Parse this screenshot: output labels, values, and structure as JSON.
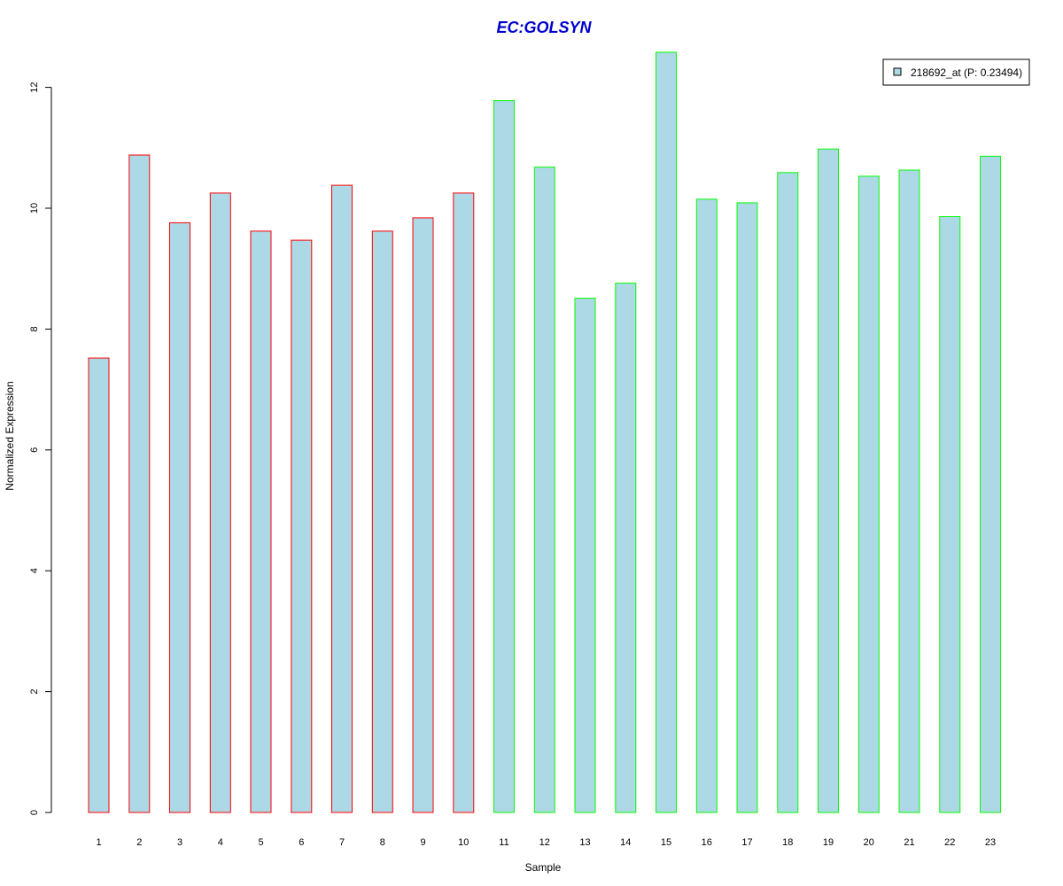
{
  "chart_data": {
    "type": "bar",
    "title": "EC:GOLSYN",
    "xlabel": "Sample",
    "ylabel": "Normalized Expression",
    "categories": [
      "1",
      "2",
      "3",
      "4",
      "5",
      "6",
      "7",
      "8",
      "9",
      "10",
      "11",
      "12",
      "13",
      "14",
      "15",
      "16",
      "17",
      "18",
      "19",
      "20",
      "21",
      "22",
      "23"
    ],
    "series": [
      {
        "name": "218692_at (P: 0.23494)",
        "values": [
          7.52,
          10.88,
          9.76,
          10.25,
          9.62,
          9.47,
          10.38,
          9.62,
          9.84,
          10.25,
          11.78,
          10.68,
          8.51,
          8.76,
          12.58,
          10.15,
          10.09,
          10.59,
          10.98,
          10.53,
          10.63,
          9.86,
          10.86
        ]
      }
    ],
    "yticks": [
      "0",
      "2",
      "4",
      "6",
      "8",
      "10",
      "12"
    ],
    "ylim": [
      0,
      12.6
    ],
    "grid": false,
    "legend_position": "top-right",
    "colors": {
      "bar_fill": "#add8e6",
      "group1_border": "#ff0000",
      "group2_border": "#00ff00",
      "title": "#0000cd",
      "axis": "#000000"
    },
    "group1_count": 10
  }
}
